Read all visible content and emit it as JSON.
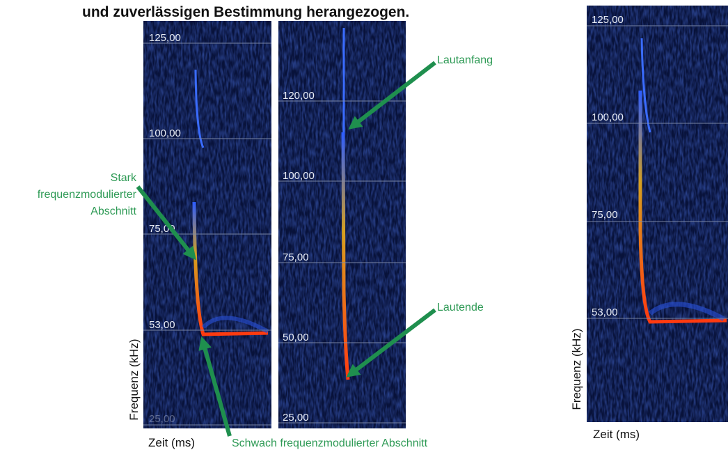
{
  "heading": "und zuverlässigen Bestimmung herangezogen.",
  "panels": [
    {
      "ticks": [
        "125,00",
        "100,00",
        "75,00",
        "53,00",
        "25,00"
      ],
      "y_label": "Frequenz (kHz)",
      "x_label": "Zeit (ms)"
    },
    {
      "ticks": [
        "120,00",
        "100,00",
        "75,00",
        "50,00",
        "25,00"
      ]
    },
    {
      "ticks": [
        "125,00",
        "100,00",
        "75,00",
        "53,00"
      ],
      "y_label": "Frequenz (kHz)",
      "x_label": "Zeit (ms)"
    }
  ],
  "annotations": {
    "strong": [
      "Stark",
      "frequenzmodulierter",
      "Abschnitt"
    ],
    "weak": "Schwach frequenzmodulierter Abschnitt",
    "start": "Lautanfang",
    "end": "Lautende"
  }
}
